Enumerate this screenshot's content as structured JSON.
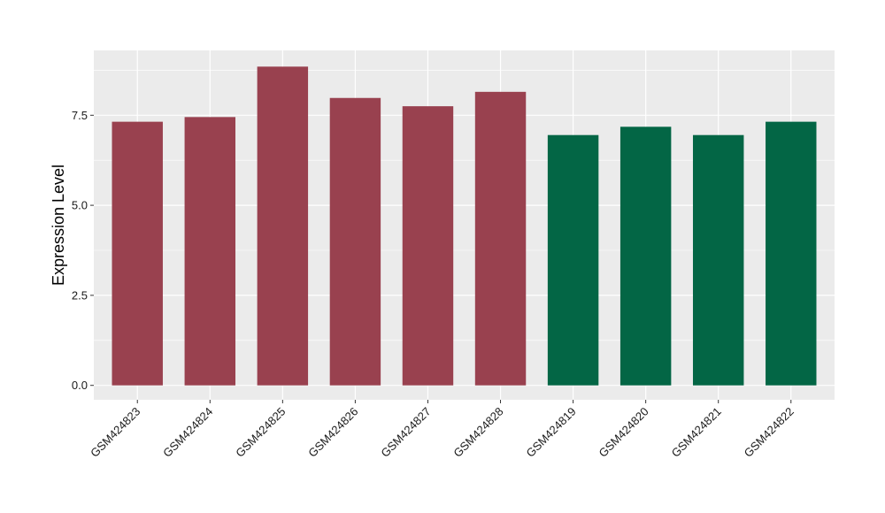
{
  "chart_data": {
    "type": "bar",
    "title": "",
    "xlabel": "",
    "ylabel": "Expression Level",
    "categories": [
      "GSM424823",
      "GSM424824",
      "GSM424825",
      "GSM424826",
      "GSM424827",
      "GSM424828",
      "GSM424819",
      "GSM424820",
      "GSM424821",
      "GSM424822"
    ],
    "values": [
      7.32,
      7.45,
      8.85,
      7.98,
      7.75,
      8.15,
      6.95,
      7.18,
      6.95,
      7.32
    ],
    "bar_colors": [
      "#99414f",
      "#99414f",
      "#99414f",
      "#99414f",
      "#99414f",
      "#99414f",
      "#036645",
      "#036645",
      "#036645",
      "#036645"
    ],
    "ylim": [
      -0.4,
      9.3
    ],
    "yticks": [
      0.0,
      2.5,
      5.0,
      7.5
    ],
    "ytick_labels": [
      "0.0",
      "2.5",
      "5.0",
      "7.5"
    ],
    "grid": true,
    "panel_background": "#ebebeb",
    "gridline_color": "#ffffff",
    "legend": "none"
  }
}
